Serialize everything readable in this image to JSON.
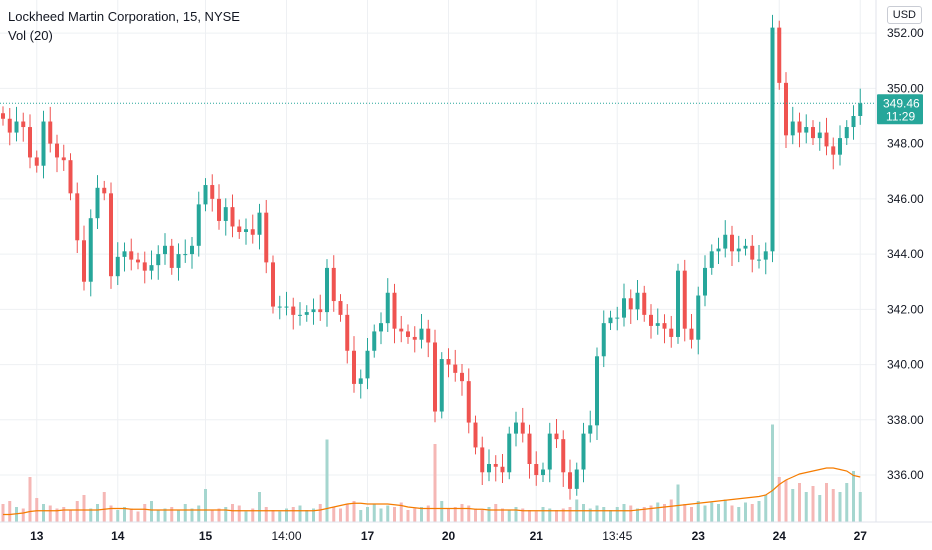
{
  "legend": {
    "title": "Lockheed Martin Corporation, 15, NYSE",
    "volume": "Vol (20)"
  },
  "currency": "USD",
  "colors": {
    "up": "#26a69a",
    "down": "#ef5350",
    "up_vol": "#a5d6cf",
    "down_vol": "#f5b7b5",
    "vol_ma": "#f57c00",
    "grid": "#eef0f3",
    "last_price": "#26a69a",
    "last_price_line": "#26a69a"
  },
  "last_price": {
    "price": "349.46",
    "time": "11:29",
    "value": 349.46
  },
  "chart_data": {
    "type": "candlestick",
    "y_ticks": [
      "336.00",
      "338.00",
      "340.00",
      "342.00",
      "344.00",
      "346.00",
      "348.00",
      "350.00",
      "352.00"
    ],
    "y_tick_values": [
      336,
      338,
      340,
      342,
      344,
      346,
      348,
      350,
      352
    ],
    "ylim": [
      334.3,
      353.2
    ],
    "x_ticks": [
      {
        "label": "13",
        "bold": true
      },
      {
        "label": "14",
        "bold": true
      },
      {
        "label": "15",
        "bold": true
      },
      {
        "label": "14:00",
        "bold": false
      },
      {
        "label": "17",
        "bold": true
      },
      {
        "label": "20",
        "bold": true
      },
      {
        "label": "21",
        "bold": true
      },
      {
        "label": "13:45",
        "bold": false
      },
      {
        "label": "23",
        "bold": true
      },
      {
        "label": "24",
        "bold": true
      },
      {
        "label": "27",
        "bold": true
      }
    ],
    "x_tick_index": [
      5,
      17,
      30,
      42,
      54,
      66,
      79,
      91,
      103,
      115,
      127
    ],
    "series_close": [
      348.9,
      348.4,
      348.8,
      348.6,
      347.5,
      347.2,
      348.8,
      348.0,
      347.5,
      347.4,
      346.2,
      344.5,
      343.0,
      345.3,
      346.4,
      346.2,
      343.2,
      343.9,
      344.1,
      343.8,
      343.7,
      343.4,
      343.6,
      344.0,
      344.3,
      343.5,
      344.0,
      344.0,
      344.3,
      345.8,
      346.5,
      346.0,
      345.2,
      345.7,
      345.0,
      344.8,
      344.9,
      344.7,
      345.5,
      343.7,
      342.1,
      342.1,
      342.1,
      341.8,
      341.8,
      341.9,
      342.0,
      341.9,
      343.5,
      342.3,
      341.8,
      340.5,
      339.3,
      339.5,
      340.5,
      341.2,
      341.5,
      342.6,
      341.3,
      341.2,
      341.0,
      340.9,
      341.3,
      340.8,
      338.3,
      340.2,
      340.0,
      339.7,
      339.4,
      337.9,
      337.0,
      336.1,
      336.4,
      336.3,
      336.1,
      337.5,
      337.9,
      337.5,
      336.4,
      336.0,
      336.2,
      337.5,
      337.3,
      336.1,
      335.5,
      336.2,
      337.5,
      337.8,
      340.3,
      341.5,
      341.7,
      341.7,
      342.4,
      342.0,
      342.6,
      341.8,
      341.4,
      341.5,
      341.3,
      341.0,
      343.4,
      341.3,
      340.9,
      342.5,
      343.5,
      344.1,
      344.2,
      344.7,
      344.1,
      344.2,
      344.3,
      343.8,
      343.8,
      344.1,
      352.2,
      350.2,
      348.3,
      348.8,
      348.4,
      348.6,
      348.2,
      348.4,
      347.9,
      347.6,
      348.2,
      348.6,
      349.0,
      349.46
    ],
    "volumes": [
      12,
      14,
      10,
      9,
      30,
      16,
      12,
      11,
      9,
      10,
      8,
      14,
      18,
      9,
      12,
      20,
      11,
      8,
      10,
      9,
      7,
      12,
      14,
      8,
      9,
      10,
      8,
      12,
      9,
      11,
      22,
      8,
      9,
      10,
      12,
      11,
      7,
      9,
      20,
      10,
      8,
      7,
      9,
      10,
      11,
      8,
      9,
      12,
      55,
      10,
      9,
      12,
      14,
      8,
      10,
      12,
      9,
      11,
      10,
      13,
      8,
      9,
      10,
      11,
      52,
      14,
      9,
      10,
      12,
      11,
      9,
      8,
      10,
      12,
      9,
      8,
      10,
      9,
      8,
      7,
      10,
      9,
      8,
      9,
      10,
      15,
      12,
      9,
      11,
      10,
      8,
      10,
      12,
      11,
      9,
      10,
      11,
      13,
      12,
      15,
      25,
      12,
      10,
      14,
      11,
      13,
      12,
      15,
      11,
      10,
      13,
      12,
      14,
      18,
      65,
      30,
      28,
      22,
      26,
      20,
      24,
      18,
      26,
      22,
      20,
      26,
      34,
      20
    ],
    "vol_ma": [
      5,
      5,
      5.5,
      6,
      7,
      7.5,
      7.5,
      7.5,
      7.5,
      8,
      8,
      8,
      8,
      8,
      8,
      8.5,
      9,
      9,
      9,
      8.5,
      8.5,
      8.5,
      8,
      8,
      8,
      8,
      8,
      8,
      8,
      8,
      8,
      8,
      8,
      8,
      7.5,
      7.5,
      7.5,
      7.5,
      7.5,
      7.5,
      7.5,
      7.5,
      7.5,
      7.5,
      7.5,
      7.5,
      7.5,
      8,
      9,
      10,
      11,
      12,
      12.5,
      12.5,
      12,
      12,
      12,
      12,
      11.5,
      11,
      10,
      9.5,
      9,
      9,
      9,
      9,
      9,
      9,
      9,
      9,
      8.5,
      8.5,
      8,
      8,
      8,
      8,
      8,
      7.5,
      7.5,
      7.5,
      7.5,
      7.5,
      7.5,
      7.5,
      7.5,
      7.5,
      7.5,
      7.5,
      7.5,
      7.5,
      7.5,
      7.5,
      7.5,
      7.5,
      8,
      8.5,
      9,
      9.5,
      10,
      10.5,
      11,
      11.5,
      12,
      12.5,
      13,
      13.5,
      14,
      14.5,
      15,
      15.5,
      16,
      16.5,
      17,
      18,
      21,
      25,
      28,
      30,
      32,
      33,
      34,
      35,
      36,
      36,
      35,
      34,
      31,
      30
    ]
  }
}
